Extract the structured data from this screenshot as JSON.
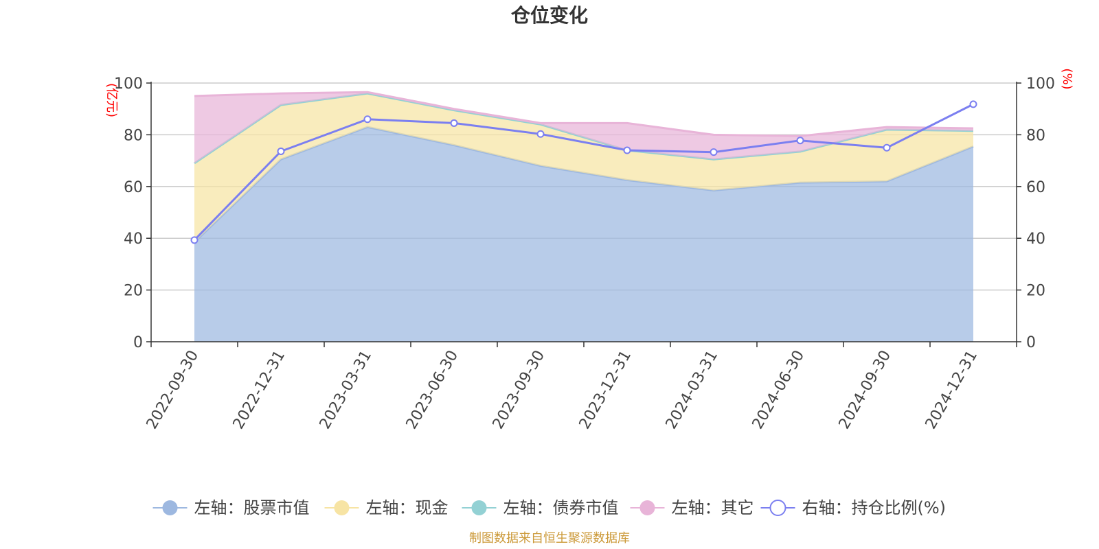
{
  "chart_data": {
    "type": "area",
    "title": "仓位变化",
    "left_axis_unit": "(亿元)",
    "right_axis_unit": "(%)",
    "categories": [
      "2022-09-30",
      "2022-12-31",
      "2023-03-31",
      "2023-06-30",
      "2023-09-30",
      "2023-12-31",
      "2024-03-31",
      "2024-06-30",
      "2024-09-30",
      "2024-12-31"
    ],
    "ylim_left": [
      0,
      100
    ],
    "ylim_right": [
      0,
      100
    ],
    "yticks_left": [
      "0",
      "20",
      "40",
      "60",
      "80",
      "100"
    ],
    "yticks_right": [
      "0",
      "20",
      "40",
      "60",
      "80",
      "100"
    ],
    "grid": true,
    "stacked": true,
    "legend_position": "bottom",
    "series": [
      {
        "name": "左轴：股票市值",
        "axis": "left",
        "type": "area",
        "color": "#9db8e0",
        "values": [
          38.5,
          70.5,
          83.0,
          76.0,
          68.0,
          62.5,
          58.5,
          61.5,
          62.0,
          75.5
        ]
      },
      {
        "name": "左轴：现金",
        "axis": "left",
        "type": "area",
        "color": "#f7e4a4",
        "values": [
          30.5,
          21.0,
          13.0,
          13.5,
          16.0,
          11.5,
          12.0,
          12.0,
          20.0,
          6.0
        ]
      },
      {
        "name": "左轴：债券市值",
        "axis": "left",
        "type": "area",
        "color": "#93d1d4",
        "values": [
          0,
          0,
          0,
          0,
          0,
          0,
          0,
          0,
          0,
          0
        ]
      },
      {
        "name": "左轴：其它",
        "axis": "left",
        "type": "area",
        "color": "#e8b4d8",
        "values": [
          26.0,
          4.5,
          0.5,
          0.5,
          0.5,
          10.5,
          9.5,
          6.0,
          1.0,
          1.0
        ]
      },
      {
        "name": "右轴：持仓比例(%)",
        "axis": "right",
        "type": "line",
        "color": "#7b7ff0",
        "values": [
          39.3,
          73.6,
          86.0,
          84.5,
          80.3,
          74.0,
          73.3,
          77.8,
          75.0,
          91.8
        ]
      }
    ],
    "source": "制图数据来自恒生聚源数据库"
  }
}
